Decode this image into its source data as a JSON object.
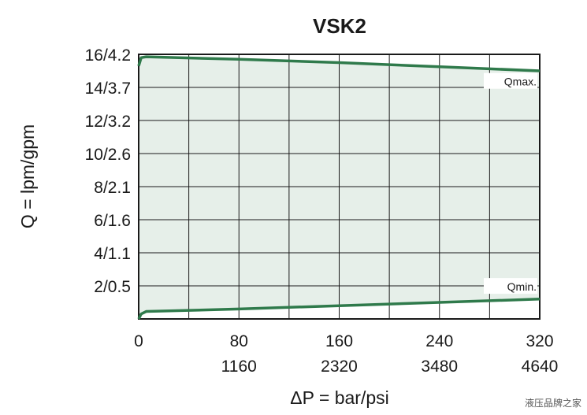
{
  "chart_data": {
    "type": "area",
    "title": "VSK2",
    "xlabel": "ΔP = bar/psi",
    "ylabel": "Q = lpm/gpm",
    "xlim": [
      0,
      320
    ],
    "ylim": [
      0,
      16
    ],
    "x_ticks": [
      {
        "value": 0,
        "label": "0",
        "label2": ""
      },
      {
        "value": 80,
        "label": "80",
        "label2": "1160"
      },
      {
        "value": 160,
        "label": "160",
        "label2": "2320"
      },
      {
        "value": 240,
        "label": "240",
        "label2": "3480"
      },
      {
        "value": 320,
        "label": "320",
        "label2": "4640"
      }
    ],
    "y_ticks": [
      {
        "value": 2,
        "label": "2/0.5"
      },
      {
        "value": 4,
        "label": "4/1.1"
      },
      {
        "value": 6,
        "label": "6/1.6"
      },
      {
        "value": 8,
        "label": "8/2.1"
      },
      {
        "value": 10,
        "label": "10/2.6"
      },
      {
        "value": 12,
        "label": "12/3.2"
      },
      {
        "value": 14,
        "label": "14/3.7"
      },
      {
        "value": 16,
        "label": "16/4.2"
      }
    ],
    "grid": true,
    "grid_x_step": 40,
    "grid_y_step": 2,
    "series": [
      {
        "name": "Qmax.",
        "color": "#2f7a4b",
        "points": [
          [
            0,
            15.3
          ],
          [
            2,
            15.8
          ],
          [
            6,
            15.85
          ],
          [
            80,
            15.7
          ],
          [
            160,
            15.5
          ],
          [
            240,
            15.25
          ],
          [
            320,
            15.0
          ]
        ]
      },
      {
        "name": "Qmin.",
        "color": "#2f7a4b",
        "points": [
          [
            0,
            0.0
          ],
          [
            2,
            0.3
          ],
          [
            6,
            0.45
          ],
          [
            80,
            0.6
          ],
          [
            160,
            0.8
          ],
          [
            240,
            1.0
          ],
          [
            320,
            1.2
          ]
        ]
      }
    ],
    "fill_between_color": "#e6efe9",
    "plot_background": "#ffffff"
  },
  "watermark": "液压品牌之家"
}
